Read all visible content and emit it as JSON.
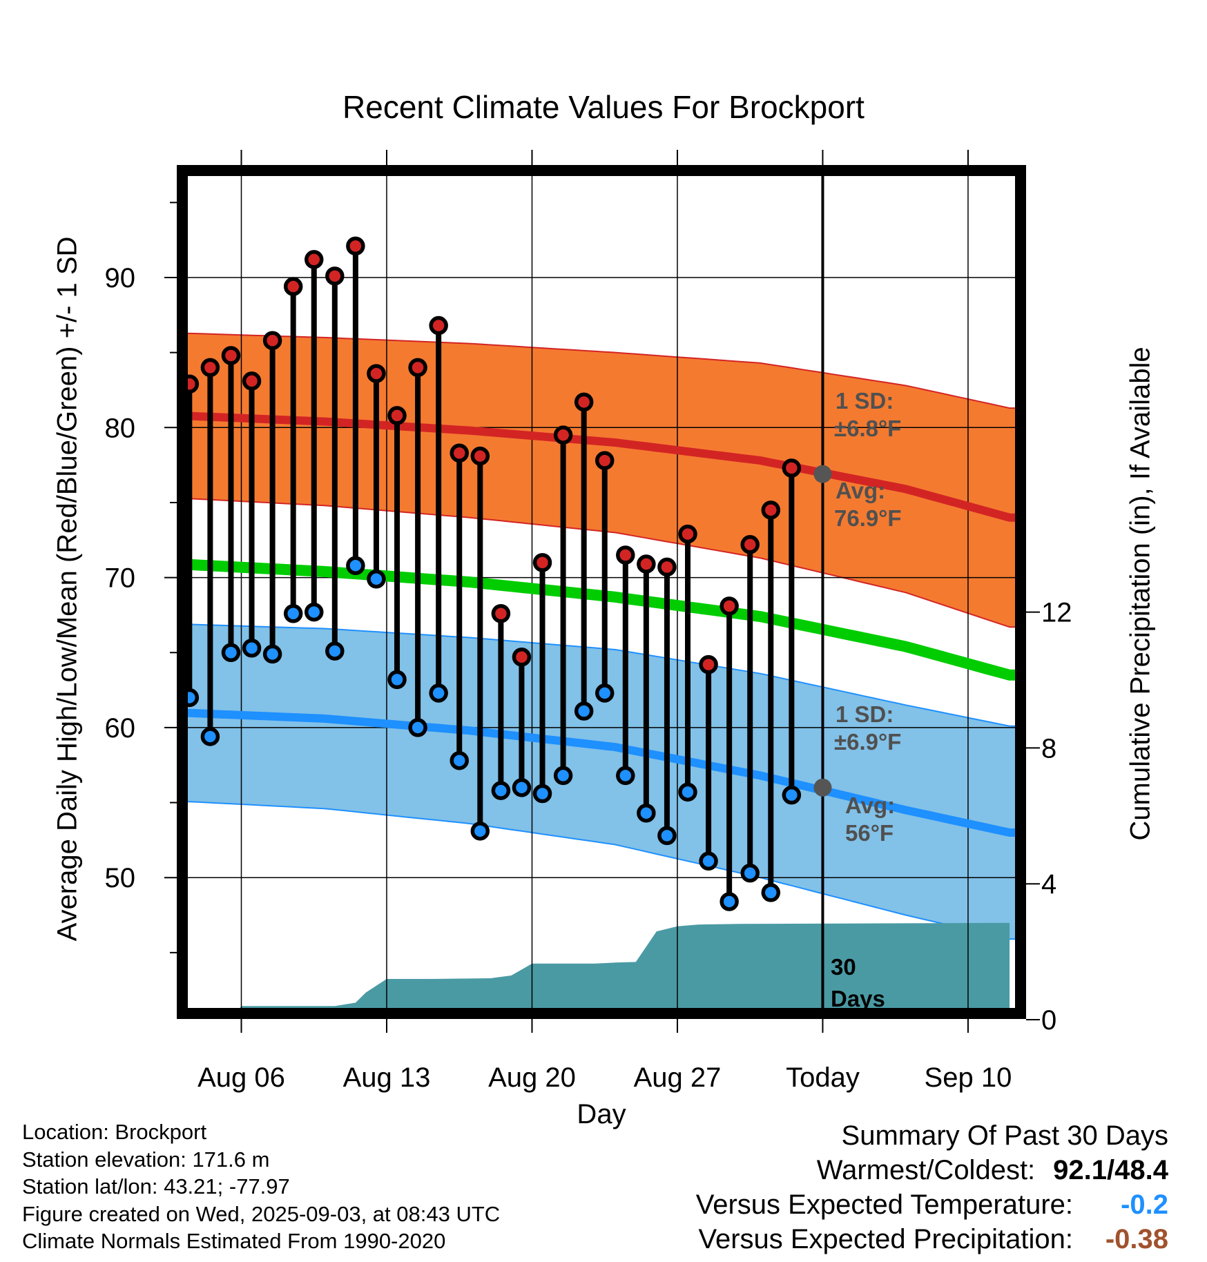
{
  "title": "Recent Climate Values For Brockport",
  "ylabel": "Average Daily High/Low/Mean (Red/Blue/Green) +/- 1 SD",
  "y2label": "Cumulative Precipitation (in), If Available",
  "xlabel": "Day",
  "meta": {
    "location": "Location: Brockport",
    "elevation": "Station elevation: 171.6 m",
    "latlon": "Station lat/lon: 43.21; -77.97",
    "created": "Figure created on Wed, 2025-09-03, at 08:43 UTC",
    "normals": "Climate Normals Estimated From 1990-2020"
  },
  "summary": {
    "heading": "Summary Of Past 30 Days",
    "warmcold_label": "Warmest/Coldest:",
    "warmcold_value": "92.1/48.4",
    "temp_label": "Versus Expected Temperature:",
    "temp_value": "-0.2",
    "precip_label": "Versus Expected Precipitation:",
    "precip_value": "-0.38"
  },
  "colors": {
    "high_band": "#f47a30",
    "high_line": "#d32424",
    "low_band": "#82c1e8",
    "low_line": "#1e90ff",
    "mean_line": "#00cc00",
    "precip": "#4a9aa4",
    "high_marker": "#d32424",
    "low_marker": "#1e90ff",
    "annotation_text": "#505050",
    "temp_value": "#1e90ff",
    "precip_value": "#a0522d"
  },
  "chart_data": {
    "type": "line",
    "x_axis": {
      "start": "Aug 03",
      "end": "Sep 12",
      "ticks": [
        {
          "day": 6,
          "label": "Aug 06"
        },
        {
          "day": 13,
          "label": "Aug 13"
        },
        {
          "day": 20,
          "label": "Aug 20"
        },
        {
          "day": 27,
          "label": "Aug 27"
        },
        {
          "day": 34,
          "label": "Today"
        },
        {
          "day": 41,
          "label": "Sep 10"
        }
      ],
      "today_day": 34
    },
    "y_axis": {
      "ylim": [
        41,
        97
      ],
      "ticks": [
        50,
        60,
        70,
        80,
        90
      ],
      "minor_step": 5
    },
    "y2_axis": {
      "ylim": [
        0,
        15.94
      ],
      "ticks": [
        0,
        4,
        8,
        12
      ]
    },
    "grid": true,
    "x_days": [
      3,
      4,
      5,
      6,
      7,
      8,
      9,
      10,
      11,
      12,
      13,
      14,
      15,
      16,
      17,
      18,
      19,
      20,
      21,
      22,
      23,
      24,
      25,
      26,
      27,
      28,
      29,
      30,
      31,
      32,
      33
    ],
    "daily_high": [
      82.9,
      84.0,
      84.8,
      83.1,
      85.8,
      89.4,
      91.2,
      90.1,
      92.1,
      83.6,
      80.8,
      84.0,
      86.8,
      78.3,
      78.1,
      67.6,
      64.7,
      71.0,
      79.5,
      81.7,
      77.8,
      71.5,
      70.9,
      70.7,
      72.9,
      64.2,
      68.1,
      72.2,
      74.5,
      77.3
    ],
    "daily_low": [
      62.0,
      59.4,
      65.0,
      65.3,
      64.9,
      67.6,
      67.7,
      65.1,
      70.8,
      69.9,
      63.2,
      60.0,
      62.3,
      57.8,
      53.1,
      55.8,
      56.0,
      55.6,
      56.8,
      61.1,
      62.3,
      56.8,
      54.3,
      52.8,
      55.7,
      51.1,
      48.4,
      50.3,
      49.0,
      55.5
    ],
    "record_days": [
      3.5,
      4.5,
      5.5,
      6.5,
      7.5,
      8.5,
      9.5,
      10.5,
      11.5,
      12.5,
      13.5,
      14.5,
      15.5,
      16.5,
      17.5,
      18.5,
      19.5,
      20.5,
      21.5,
      22.5,
      23.5,
      24.5,
      25.5,
      26.5,
      27.5,
      28.5,
      29.5,
      30.5,
      31.5,
      32.5
    ],
    "normals": {
      "days": [
        3,
        10,
        17,
        24,
        31,
        38,
        43
      ],
      "high_avg": [
        80.8,
        80.4,
        79.8,
        79.0,
        77.8,
        75.9,
        74.0
      ],
      "high_sd": [
        5.5,
        5.6,
        5.8,
        6.0,
        6.5,
        6.9,
        7.3
      ],
      "low_avg": [
        61.0,
        60.6,
        59.8,
        58.7,
        56.8,
        54.5,
        53.0
      ],
      "low_sd": [
        5.9,
        6.0,
        6.2,
        6.5,
        6.8,
        7.0,
        7.1
      ],
      "mean": [
        70.9,
        70.4,
        69.7,
        68.7,
        67.4,
        65.4,
        63.5
      ]
    },
    "precip_cumulative": {
      "days": [
        3,
        5.5,
        6,
        9,
        10.5,
        11.5,
        12,
        13,
        15,
        18,
        19,
        20,
        23,
        24,
        25,
        26,
        27,
        28,
        30,
        43
      ],
      "values": [
        0,
        0,
        0.4,
        0.4,
        0.4,
        0.5,
        0.8,
        1.2,
        1.2,
        1.22,
        1.3,
        1.65,
        1.65,
        1.68,
        1.7,
        2.6,
        2.75,
        2.8,
        2.82,
        2.85
      ]
    },
    "annotations": {
      "high_sd": "1 SD:",
      "high_sd_value": "±6.8°F",
      "high_avg": "Avg:",
      "high_avg_value": "76.9°F",
      "low_sd": "1 SD:",
      "low_sd_value": "±6.9°F",
      "low_avg": "Avg:",
      "low_avg_value": "56°F",
      "today_high_avg": 76.9,
      "today_low_avg": 56,
      "days_label_num": "30",
      "days_label_word": "Days"
    }
  }
}
